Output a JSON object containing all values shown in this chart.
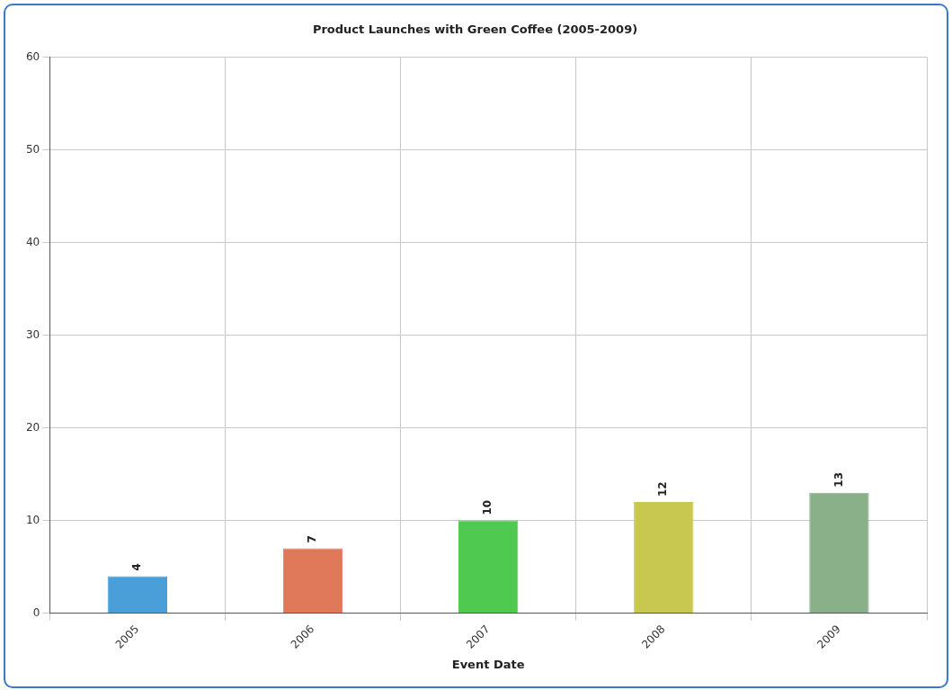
{
  "chart_data": {
    "type": "bar",
    "title": "Product Launches with Green Coffee (2005-2009)",
    "xlabel": "Event Date",
    "categories": [
      "2005",
      "2006",
      "2007",
      "2008",
      "2009"
    ],
    "values": [
      4,
      7,
      10,
      12,
      13
    ],
    "colors": [
      "#4a9fd8",
      "#e0785a",
      "#4fc94f",
      "#c8c850",
      "#8ab08a"
    ],
    "ylim": [
      0,
      60
    ],
    "yticks": [
      0,
      10,
      20,
      30,
      40,
      50,
      60
    ],
    "grid": true,
    "data_labels": true
  }
}
